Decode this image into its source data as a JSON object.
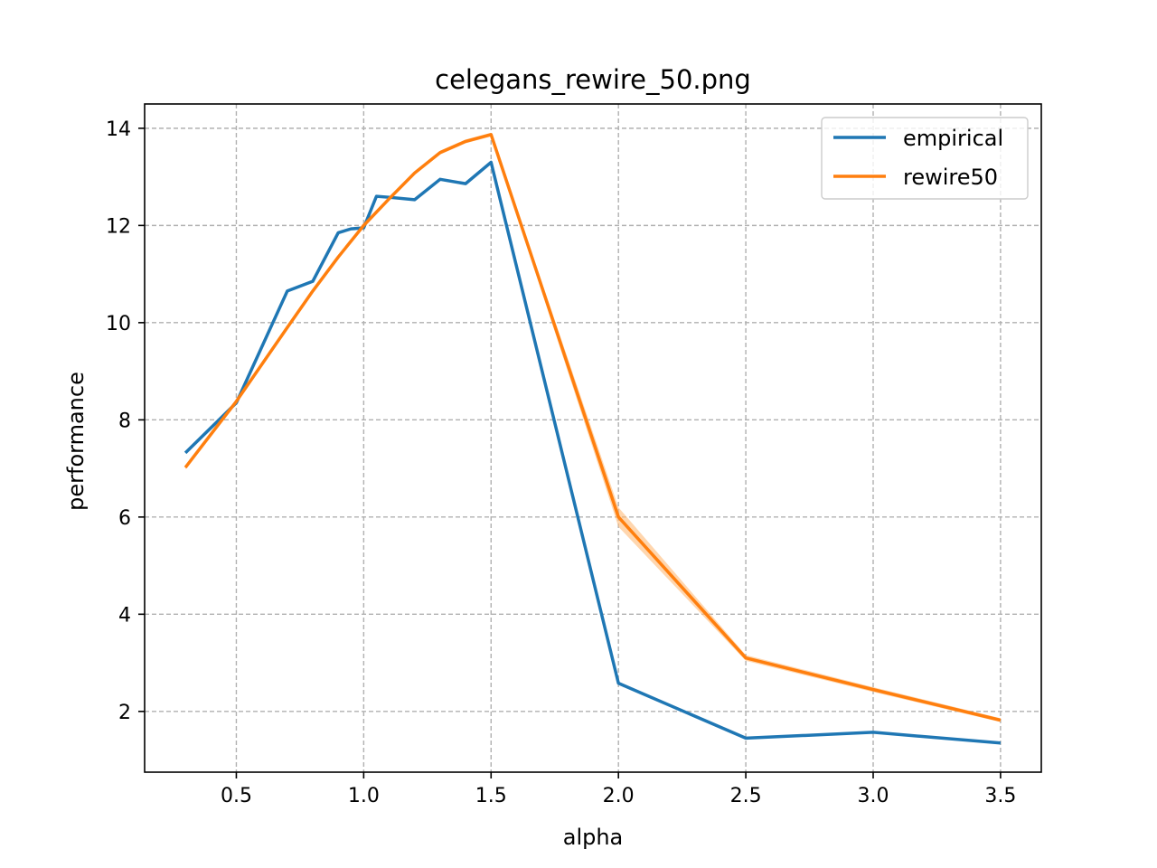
{
  "chart_data": {
    "type": "line",
    "title": "celegans_rewire_50.png",
    "xlabel": "alpha",
    "ylabel": "performance",
    "xlim": [
      0.14,
      3.66
    ],
    "ylim": [
      0.75,
      14.5
    ],
    "xticks": [
      0.5,
      1.0,
      1.5,
      2.0,
      2.5,
      3.0,
      3.5
    ],
    "xtick_labels": [
      "0.5",
      "1.0",
      "1.5",
      "2.0",
      "2.5",
      "3.0",
      "3.5"
    ],
    "yticks": [
      2,
      4,
      6,
      8,
      10,
      12,
      14
    ],
    "ytick_labels": [
      "2",
      "4",
      "6",
      "8",
      "10",
      "12",
      "14"
    ],
    "grid": true,
    "legend_position": "top-right",
    "series": [
      {
        "name": "empirical",
        "color": "#1f77b4",
        "x": [
          0.3,
          0.5,
          0.7,
          0.8,
          0.9,
          0.95,
          1.0,
          1.05,
          1.1,
          1.2,
          1.3,
          1.4,
          1.5,
          2.0,
          2.5,
          3.0,
          3.5
        ],
        "y": [
          7.32,
          8.35,
          10.65,
          10.85,
          11.85,
          11.93,
          11.95,
          12.6,
          12.58,
          12.53,
          12.95,
          12.86,
          13.3,
          2.58,
          1.45,
          1.57,
          1.35
        ]
      },
      {
        "name": "rewire50",
        "color": "#ff7f0e",
        "band_color": "#ffbb78",
        "x": [
          0.3,
          0.5,
          0.7,
          0.8,
          0.9,
          1.0,
          1.1,
          1.2,
          1.3,
          1.4,
          1.5,
          2.0,
          2.5,
          3.0,
          3.5
        ],
        "y": [
          7.02,
          8.38,
          9.9,
          10.65,
          11.35,
          12.0,
          12.55,
          13.08,
          13.5,
          13.73,
          13.87,
          6.0,
          3.1,
          2.45,
          1.82
        ],
        "y_low": [
          6.98,
          8.34,
          9.86,
          10.61,
          11.31,
          11.96,
          12.51,
          13.04,
          13.46,
          13.69,
          13.83,
          5.8,
          3.04,
          2.4,
          1.78
        ],
        "y_high": [
          7.06,
          8.42,
          9.94,
          10.69,
          11.39,
          12.04,
          12.59,
          13.12,
          13.54,
          13.77,
          13.91,
          6.2,
          3.16,
          2.5,
          1.86
        ]
      }
    ]
  }
}
